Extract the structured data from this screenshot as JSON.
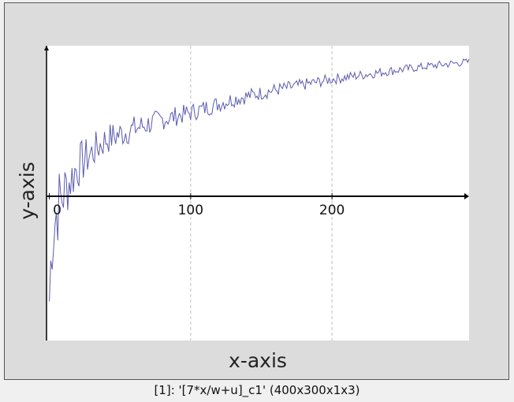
{
  "window": {
    "caption": "[1]: '[7*x/w+u]_c1' (400x300x1x3)"
  },
  "colors": {
    "plot_bg": "#ffffff",
    "series": "#5b5bb0",
    "grid": "#c0c0c0",
    "axis": "#000000"
  },
  "chart_data": {
    "type": "line",
    "xlabel": "x-axis",
    "ylabel": "y-axis",
    "xlim": [
      -2,
      297
    ],
    "ylim": [
      -1.0,
      1.0
    ],
    "x_ticks": [
      0,
      100,
      200
    ],
    "x_tick_labels": [
      "0",
      "100",
      "200"
    ],
    "grid": "vertical dashed at x ticks",
    "series": [
      {
        "x": [
          0,
          2,
          4,
          6,
          8,
          10,
          15,
          20,
          30,
          40,
          60,
          80,
          100,
          130,
          160,
          200,
          240,
          270,
          297
        ],
        "values": [
          -0.8,
          -0.3,
          -0.2,
          -0.1,
          -0.05,
          0.0,
          0.1,
          0.2,
          0.3,
          0.4,
          0.48,
          0.55,
          0.6,
          0.7,
          0.77,
          0.85,
          0.91,
          0.95,
          0.98
        ],
        "noise_amplitude": [
          0.4,
          0.35,
          0.3,
          0.3,
          0.28,
          0.25,
          0.2,
          0.18,
          0.14,
          0.12,
          0.1,
          0.08,
          0.07,
          0.06,
          0.05,
          0.04,
          0.035,
          0.03,
          0.03
        ]
      }
    ]
  }
}
